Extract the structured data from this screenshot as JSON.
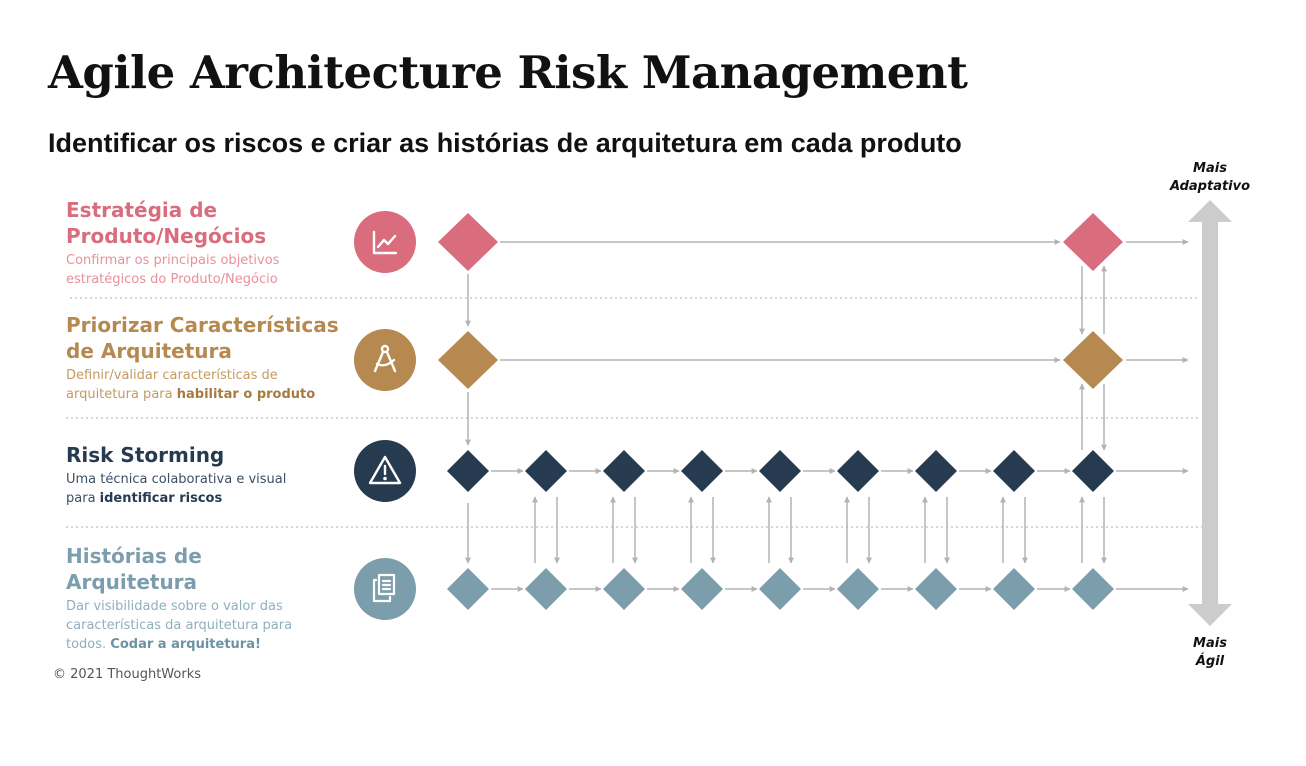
{
  "title": "Agile Architecture Risk Management",
  "subtitle": "Identificar os riscos e criar as histórias de arquitetura em cada produto",
  "axis": {
    "top_line1": "Mais",
    "top_line2": "Adaptativo",
    "bottom_line1": "Mais",
    "bottom_line2": "Ágil",
    "color": "#cccccc"
  },
  "rows": [
    {
      "title_line1": "Estratégia de",
      "title_line2": "Produto/Negócios",
      "desc_line1": "Confirmar os principais objetivos",
      "desc_line2": "estratégicos do Produto/Negócio",
      "icon": "trend-chart-icon",
      "color": "#d96c7d"
    },
    {
      "title_line1": "Priorizar Características",
      "title_line2": "de Arquitetura",
      "desc_line1": "Definir/validar características de",
      "desc_line2_prefix": "arquitetura para ",
      "desc_line2_bold": "habilitar o produto",
      "icon": "drafting-compass-icon",
      "color": "#b5894f"
    },
    {
      "title_line1": "Risk Storming",
      "desc_line1": "Uma técnica colaborativa e visual",
      "desc_line2_prefix": "para ",
      "desc_line2_bold": "identificar riscos",
      "icon": "warning-triangle-icon",
      "color": "#263a50"
    },
    {
      "title_line1": "Histórias de",
      "title_line2": "Arquitetura",
      "desc_line1": "Dar visibilidade sobre o valor das",
      "desc_line2": "características da arquitetura para",
      "desc_line3_prefix": "todos. ",
      "desc_line3_bold": "Codar a arquitetura!",
      "icon": "documents-icon",
      "color": "#7c9eac"
    }
  ],
  "footer": "© 2021 ThoughtWorks"
}
